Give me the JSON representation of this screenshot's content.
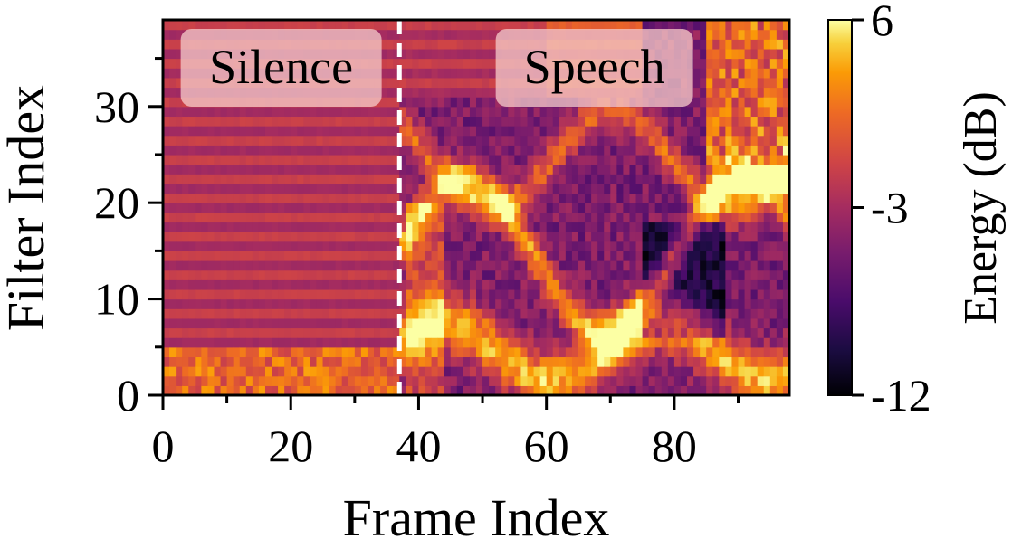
{
  "chart_data": {
    "type": "heatmap",
    "title": "",
    "xlabel": "Frame Index",
    "ylabel": "Filter Index",
    "xlim": [
      0,
      98
    ],
    "ylim": [
      0,
      39
    ],
    "n_frames": 98,
    "n_filters": 39,
    "x_ticks": [
      0,
      20,
      40,
      60,
      80
    ],
    "y_ticks": [
      0,
      10,
      20,
      30
    ],
    "colorbar": {
      "label": "Energy (dB)",
      "min": -12,
      "max": 6,
      "ticks": [
        6,
        -3,
        -12
      ],
      "tick_labels": [
        "6",
        "-3",
        "-12"
      ],
      "colormap": "inferno"
    },
    "boundary_frame": 37,
    "regions": [
      {
        "label": "Silence",
        "frame_start": 0,
        "frame_end": 37
      },
      {
        "label": "Speech",
        "frame_start": 37,
        "frame_end": 98
      }
    ],
    "colors": {
      "boundary_line": "#ffffff",
      "region_box": "#f4c6c6"
    }
  }
}
